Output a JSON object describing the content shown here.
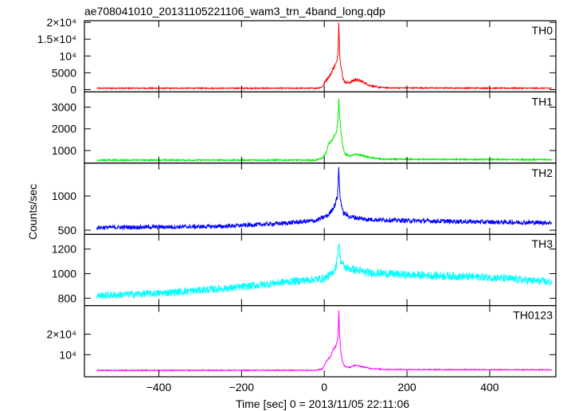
{
  "chart_data": {
    "type": "line",
    "title": "ae708041010_20131105221106_wam3_trn_4band_long.qdp",
    "xlabel": "Time [sec] 0 = 2013/11/05 22:11:06",
    "ylabel": "Counts/sec",
    "xlim": [
      -580,
      560
    ],
    "x_ticks": [
      {
        "value": -400,
        "label": "−400"
      },
      {
        "value": -200,
        "label": "−200"
      },
      {
        "value": 0,
        "label": "0"
      },
      {
        "value": 200,
        "label": "200"
      },
      {
        "value": 400,
        "label": "400"
      }
    ],
    "data_x_range": [
      -550,
      550
    ],
    "panels": [
      {
        "name": "TH0",
        "color": "#ff0000",
        "ylim": [
          -700,
          20500
        ],
        "y_ticks": [
          {
            "value": 0,
            "label": "0"
          },
          {
            "value": 5000,
            "label": "5000"
          },
          {
            "value": 10000,
            "label": "10⁴"
          },
          {
            "value": 15000,
            "label": "1.5×10⁴"
          },
          {
            "value": 20000,
            "label": "2×10⁴"
          }
        ],
        "profile": [
          [
            -550,
            400
          ],
          [
            -20,
            400
          ],
          [
            -5,
            700
          ],
          [
            5,
            3000
          ],
          [
            10,
            3700
          ],
          [
            15,
            4300
          ],
          [
            20,
            6000
          ],
          [
            25,
            7000
          ],
          [
            30,
            8000
          ],
          [
            33,
            11000
          ],
          [
            35,
            20000
          ],
          [
            37,
            12000
          ],
          [
            40,
            7000
          ],
          [
            45,
            3500
          ],
          [
            50,
            2200
          ],
          [
            60,
            2000
          ],
          [
            75,
            3000
          ],
          [
            90,
            2500
          ],
          [
            110,
            1200
          ],
          [
            130,
            700
          ],
          [
            160,
            500
          ],
          [
            550,
            400
          ]
        ],
        "noise": 150
      },
      {
        "name": "TH1",
        "color": "#00ee00",
        "ylim": [
          420,
          3700
        ],
        "y_ticks": [
          {
            "value": 1000,
            "label": "1000"
          },
          {
            "value": 2000,
            "label": "2000"
          },
          {
            "value": 3000,
            "label": "3000"
          }
        ],
        "profile": [
          [
            -550,
            560
          ],
          [
            -20,
            560
          ],
          [
            -5,
            650
          ],
          [
            5,
            900
          ],
          [
            10,
            1300
          ],
          [
            20,
            1500
          ],
          [
            30,
            1900
          ],
          [
            33,
            2400
          ],
          [
            35,
            3400
          ],
          [
            37,
            2600
          ],
          [
            40,
            1900
          ],
          [
            45,
            1200
          ],
          [
            50,
            850
          ],
          [
            60,
            750
          ],
          [
            75,
            820
          ],
          [
            90,
            780
          ],
          [
            110,
            680
          ],
          [
            140,
            600
          ],
          [
            550,
            580
          ]
        ],
        "noise": 30
      },
      {
        "name": "TH2",
        "color": "#0000ff",
        "ylim": [
          440,
          1480
        ],
        "y_ticks": [
          {
            "value": 500,
            "label": "500"
          },
          {
            "value": 1000,
            "label": "1000"
          }
        ],
        "profile": [
          [
            -550,
            540
          ],
          [
            -250,
            555
          ],
          [
            -100,
            600
          ],
          [
            -20,
            640
          ],
          [
            10,
            720
          ],
          [
            25,
            860
          ],
          [
            32,
            1000
          ],
          [
            34,
            1250
          ],
          [
            35,
            1440
          ],
          [
            36,
            1250
          ],
          [
            38,
            1000
          ],
          [
            45,
            760
          ],
          [
            60,
            700
          ],
          [
            100,
            660
          ],
          [
            200,
            640
          ],
          [
            400,
            620
          ],
          [
            550,
            610
          ]
        ],
        "noise": 30
      },
      {
        "name": "TH3",
        "color": "#00ffff",
        "ylim": [
          740,
          1320
        ],
        "y_ticks": [
          {
            "value": 800,
            "label": "800"
          },
          {
            "value": 1000,
            "label": "1000"
          },
          {
            "value": 1200,
            "label": "1200"
          }
        ],
        "profile": [
          [
            -550,
            820
          ],
          [
            -400,
            840
          ],
          [
            -200,
            890
          ],
          [
            -100,
            930
          ],
          [
            0,
            960
          ],
          [
            20,
            1000
          ],
          [
            30,
            1080
          ],
          [
            35,
            1260
          ],
          [
            40,
            1100
          ],
          [
            50,
            1050
          ],
          [
            100,
            1010
          ],
          [
            200,
            990
          ],
          [
            400,
            970
          ],
          [
            550,
            930
          ]
        ],
        "noise": 30
      },
      {
        "name": "TH0123",
        "color": "#ff00ff",
        "ylim": [
          -800,
          34000
        ],
        "y_ticks": [
          {
            "value": 10000,
            "label": "10⁴"
          },
          {
            "value": 20000,
            "label": "2×10⁴"
          }
        ],
        "profile": [
          [
            -550,
            2300
          ],
          [
            -20,
            2400
          ],
          [
            -5,
            3000
          ],
          [
            5,
            6500
          ],
          [
            10,
            8200
          ],
          [
            15,
            9000
          ],
          [
            20,
            12000
          ],
          [
            25,
            13500
          ],
          [
            30,
            15000
          ],
          [
            33,
            18000
          ],
          [
            35,
            32000
          ],
          [
            37,
            20000
          ],
          [
            40,
            11000
          ],
          [
            45,
            6000
          ],
          [
            50,
            4200
          ],
          [
            60,
            3700
          ],
          [
            75,
            4800
          ],
          [
            90,
            4200
          ],
          [
            110,
            3300
          ],
          [
            140,
            2800
          ],
          [
            550,
            2600
          ]
        ],
        "noise": 200
      }
    ]
  }
}
